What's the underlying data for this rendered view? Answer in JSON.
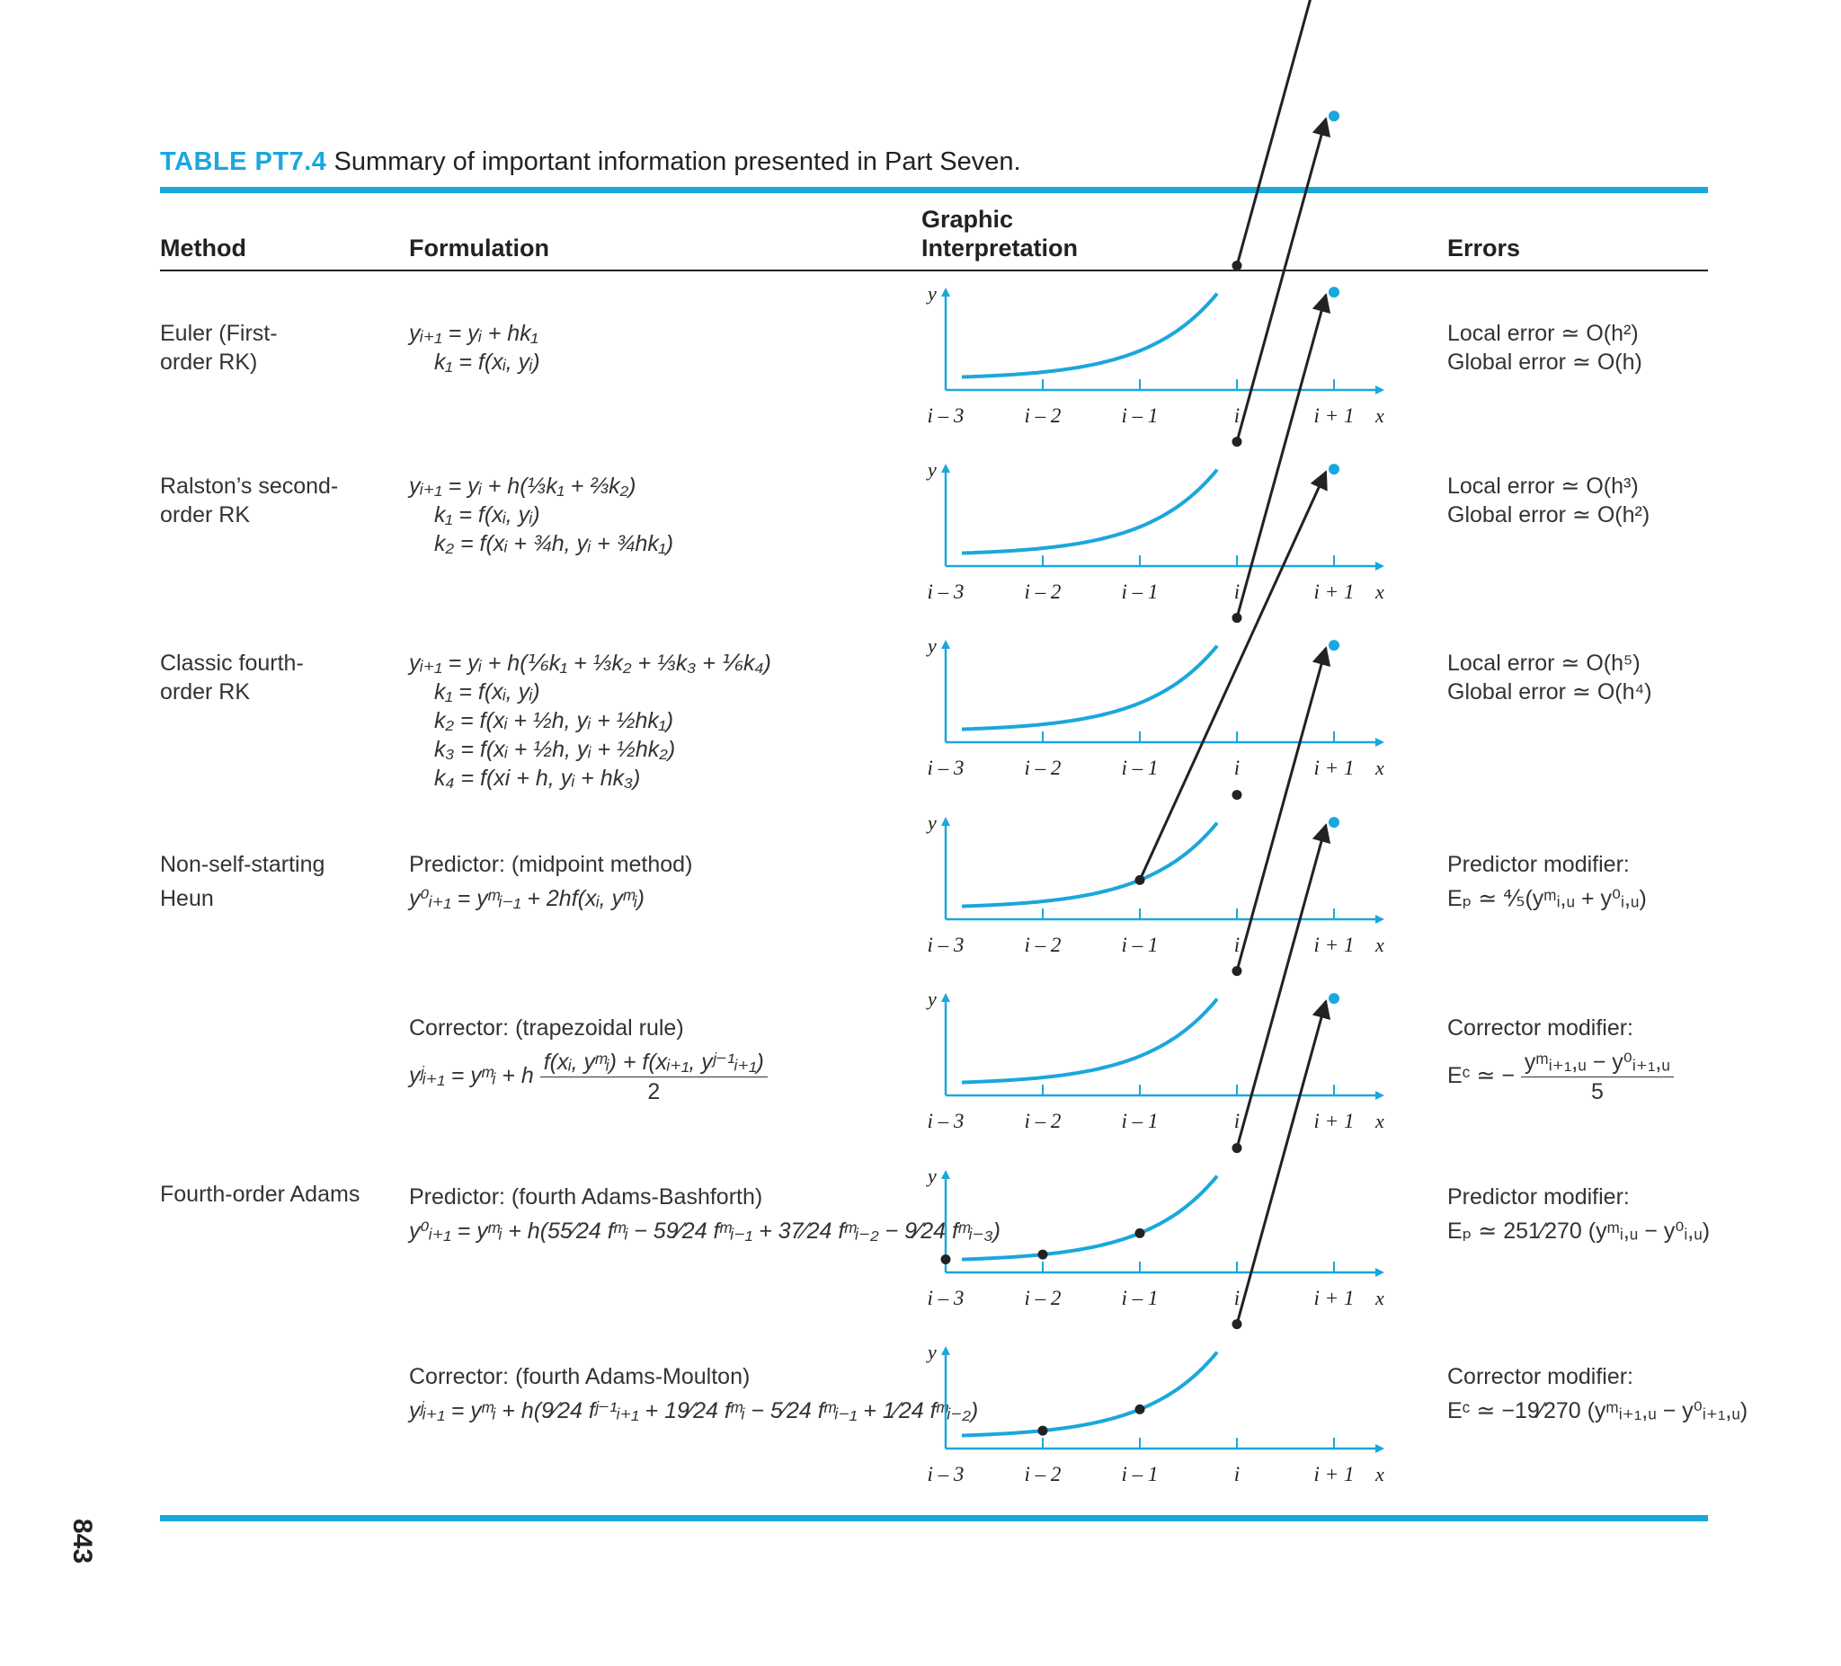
{
  "caption": {
    "tag": "TABLE PT7.4",
    "text": "Summary of important information presented in Part Seven."
  },
  "headers": {
    "method": "Method",
    "formulation": "Formulation",
    "graphic_line1": "Graphic",
    "graphic_line2": "Interpretation",
    "errors": "Errors"
  },
  "axis": {
    "y_label": "y",
    "x_label": "x",
    "ticks": [
      "i – 3",
      "i – 2",
      "i – 1",
      "i",
      "i + 1"
    ]
  },
  "rows": [
    {
      "method": [
        "Euler (First-",
        "order RK)"
      ],
      "formula": [
        "yᵢ₊₁ = yᵢ + hk₁",
        "k₁ = f(xᵢ, yᵢ)"
      ],
      "errors": [
        "Local error ≃ O(h²)",
        "Global error ≃ O(h)"
      ],
      "graph": {
        "start": "i",
        "end": "i+1",
        "extra_points": []
      }
    },
    {
      "method": [
        "Ralston’s second-",
        "order RK"
      ],
      "formula": [
        "yᵢ₊₁ = yᵢ + h(⅓k₁ + ⅔k₂)",
        "k₁ = f(xᵢ, yᵢ)",
        "k₂ = f(xᵢ + ¾h, yᵢ + ¾hk₁)"
      ],
      "errors": [
        "Local error ≃ O(h³)",
        "Global error ≃ O(h²)"
      ],
      "graph": {
        "start": "i",
        "end": "i+1",
        "extra_points": []
      }
    },
    {
      "method": [
        "Classic fourth-",
        "order RK"
      ],
      "formula": [
        "yᵢ₊₁ = yᵢ + h(⅙k₁ + ⅓k₂ + ⅓k₃ + ⅙k₄)",
        "k₁ = f(xᵢ, yᵢ)",
        "k₂ = f(xᵢ + ½h, yᵢ + ½hk₁)",
        "k₃ = f(xᵢ + ½h, yᵢ + ½hk₂)",
        "k₄ = f(xi + h, yᵢ + hk₃)"
      ],
      "errors": [
        "Local error ≃ O(h⁵)",
        "Global error ≃ O(h⁴)"
      ],
      "graph": {
        "start": "i",
        "end": "i+1",
        "extra_points": []
      }
    },
    {
      "method": [
        "Non-self-starting",
        "Heun"
      ],
      "formula": [
        "Predictor: (midpoint method)",
        "y⁰ᵢ₊₁ = yᵐᵢ₋₁ + 2hf(xᵢ, yᵐᵢ)"
      ],
      "errors": [
        "Predictor modifier:",
        "Eₚ ≃ ⅘(yᵐᵢ,ᵤ + y⁰ᵢ,ᵤ)"
      ],
      "graph": {
        "start": "i-1",
        "end": "i+1",
        "extra_points": [
          "i"
        ]
      }
    },
    {
      "method": [],
      "formula": [
        "Corrector: (trapezoidal rule)",
        "yʲᵢ₊₁ = yᵐᵢ + h",
        "f(xᵢ, yᵐᵢ) + f(xᵢ₊₁, yʲ⁻¹ᵢ₊₁)",
        "2"
      ],
      "errors": [
        "Corrector modifier:",
        "Eᶜ ≃ −",
        "yᵐᵢ₊₁,ᵤ − y⁰ᵢ₊₁,ᵤ",
        "5"
      ],
      "graph": {
        "start": "i",
        "end": "i+1",
        "extra_points": []
      }
    },
    {
      "method": [
        "Fourth-order Adams"
      ],
      "formula": [
        "Predictor: (fourth Adams-Bashforth)",
        "y⁰ᵢ₊₁ = yᵐᵢ + h(55⁄24 fᵐᵢ − 59⁄24 fᵐᵢ₋₁ + 37⁄24 fᵐᵢ₋₂ − 9⁄24 fᵐᵢ₋₃)"
      ],
      "errors": [
        "Predictor modifier:",
        "Eₚ ≃ 251⁄270 (yᵐᵢ,ᵤ − y⁰ᵢ,ᵤ)"
      ],
      "graph": {
        "start": "i",
        "end": "i+1",
        "extra_points": [
          "i-3",
          "i-2",
          "i-1"
        ]
      }
    },
    {
      "method": [],
      "formula": [
        "Corrector: (fourth Adams-Moulton)",
        "yʲᵢ₊₁ = yᵐᵢ + h(9⁄24 fʲ⁻¹ᵢ₊₁ + 19⁄24 fᵐᵢ − 5⁄24 fᵐᵢ₋₁ + 1⁄24 fᵐᵢ₋₂)"
      ],
      "errors": [
        "Corrector modifier:",
        "Eᶜ ≃ −19⁄270 (yᵐᵢ₊₁,ᵤ − y⁰ᵢ₊₁,ᵤ)"
      ],
      "graph": {
        "start": "i",
        "end": "i+1",
        "extra_points": [
          "i-2",
          "i-1"
        ]
      }
    }
  ],
  "page_number": "843",
  "colors": {
    "accent": "#1aa7dd",
    "text": "#222222"
  }
}
